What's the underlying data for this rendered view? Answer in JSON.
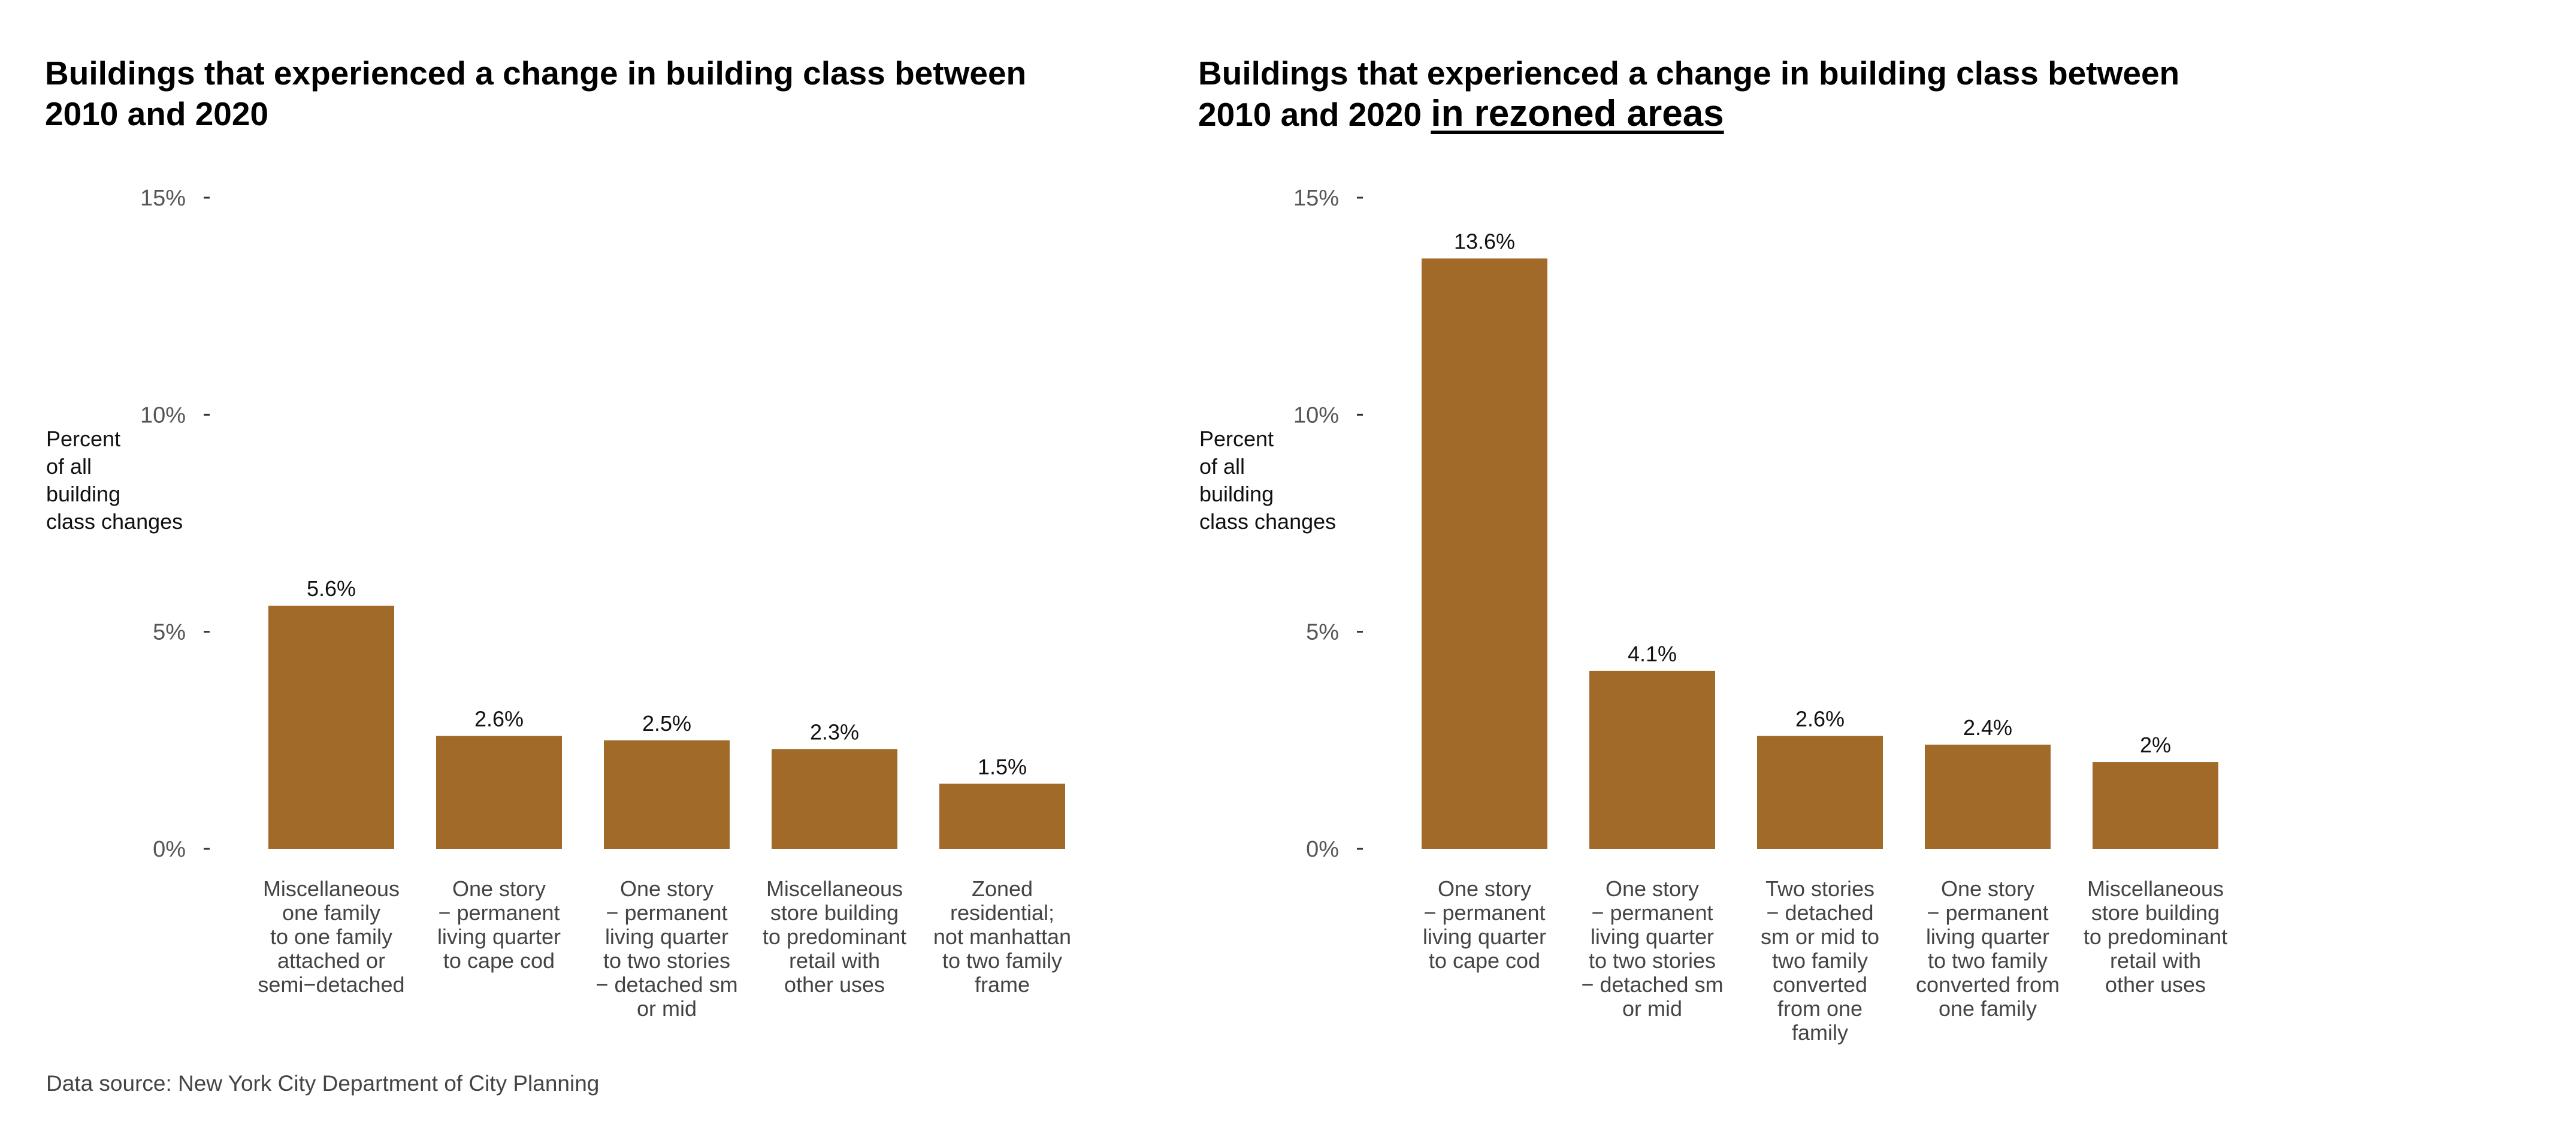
{
  "bar_color": "#a26a29",
  "source": "Data source: New York City Department of City Planning",
  "chart_data": [
    {
      "type": "bar",
      "title": "Buildings that experienced a change in building class between 2010 and 2020",
      "title_emphasis": "",
      "ylabel_lines": [
        "Percent",
        "of all",
        "building",
        "class changes"
      ],
      "ylim": [
        0,
        15
      ],
      "yticks": [
        0,
        5,
        10,
        15
      ],
      "ytick_labels": [
        "0%",
        "5%",
        "10%",
        "15%"
      ],
      "grid": false,
      "categories": [
        [
          "Miscellaneous",
          "one family",
          "to one family",
          "attached or",
          "semi−detached"
        ],
        [
          "One story",
          "− permanent",
          "living quarter",
          "to cape cod"
        ],
        [
          "One story",
          "− permanent",
          "living quarter",
          "to two stories",
          "− detached sm",
          "or mid"
        ],
        [
          "Miscellaneous",
          "store building",
          "to predominant",
          "retail with",
          "other uses"
        ],
        [
          "Zoned",
          "residential;",
          "not manhattan",
          "to two family",
          "frame"
        ]
      ],
      "values": [
        5.6,
        2.6,
        2.5,
        2.3,
        1.5
      ],
      "data_labels": [
        "5.6%",
        "2.6%",
        "2.5%",
        "2.3%",
        "1.5%"
      ]
    },
    {
      "type": "bar",
      "title": "Buildings that experienced a change in building class between 2010 and 2020",
      "title_emphasis": "in rezoned areas",
      "ylabel_lines": [
        "Percent",
        "of all",
        "building",
        "class changes"
      ],
      "ylim": [
        0,
        15
      ],
      "yticks": [
        0,
        5,
        10,
        15
      ],
      "ytick_labels": [
        "0%",
        "5%",
        "10%",
        "15%"
      ],
      "grid": false,
      "categories": [
        [
          "One story",
          "− permanent",
          "living quarter",
          "to cape cod"
        ],
        [
          "One story",
          "− permanent",
          "living quarter",
          "to two stories",
          "− detached sm",
          "or mid"
        ],
        [
          "Two stories",
          "− detached",
          "sm or mid to",
          "two family",
          "converted",
          "from one",
          "family"
        ],
        [
          "One story",
          "− permanent",
          "living quarter",
          "to two family",
          "converted from",
          "one family"
        ],
        [
          "Miscellaneous",
          "store building",
          "to predominant",
          "retail with",
          "other uses"
        ]
      ],
      "values": [
        13.6,
        4.1,
        2.6,
        2.4,
        2.0
      ],
      "data_labels": [
        "13.6%",
        "4.1%",
        "2.6%",
        "2.4%",
        "2%"
      ]
    }
  ]
}
